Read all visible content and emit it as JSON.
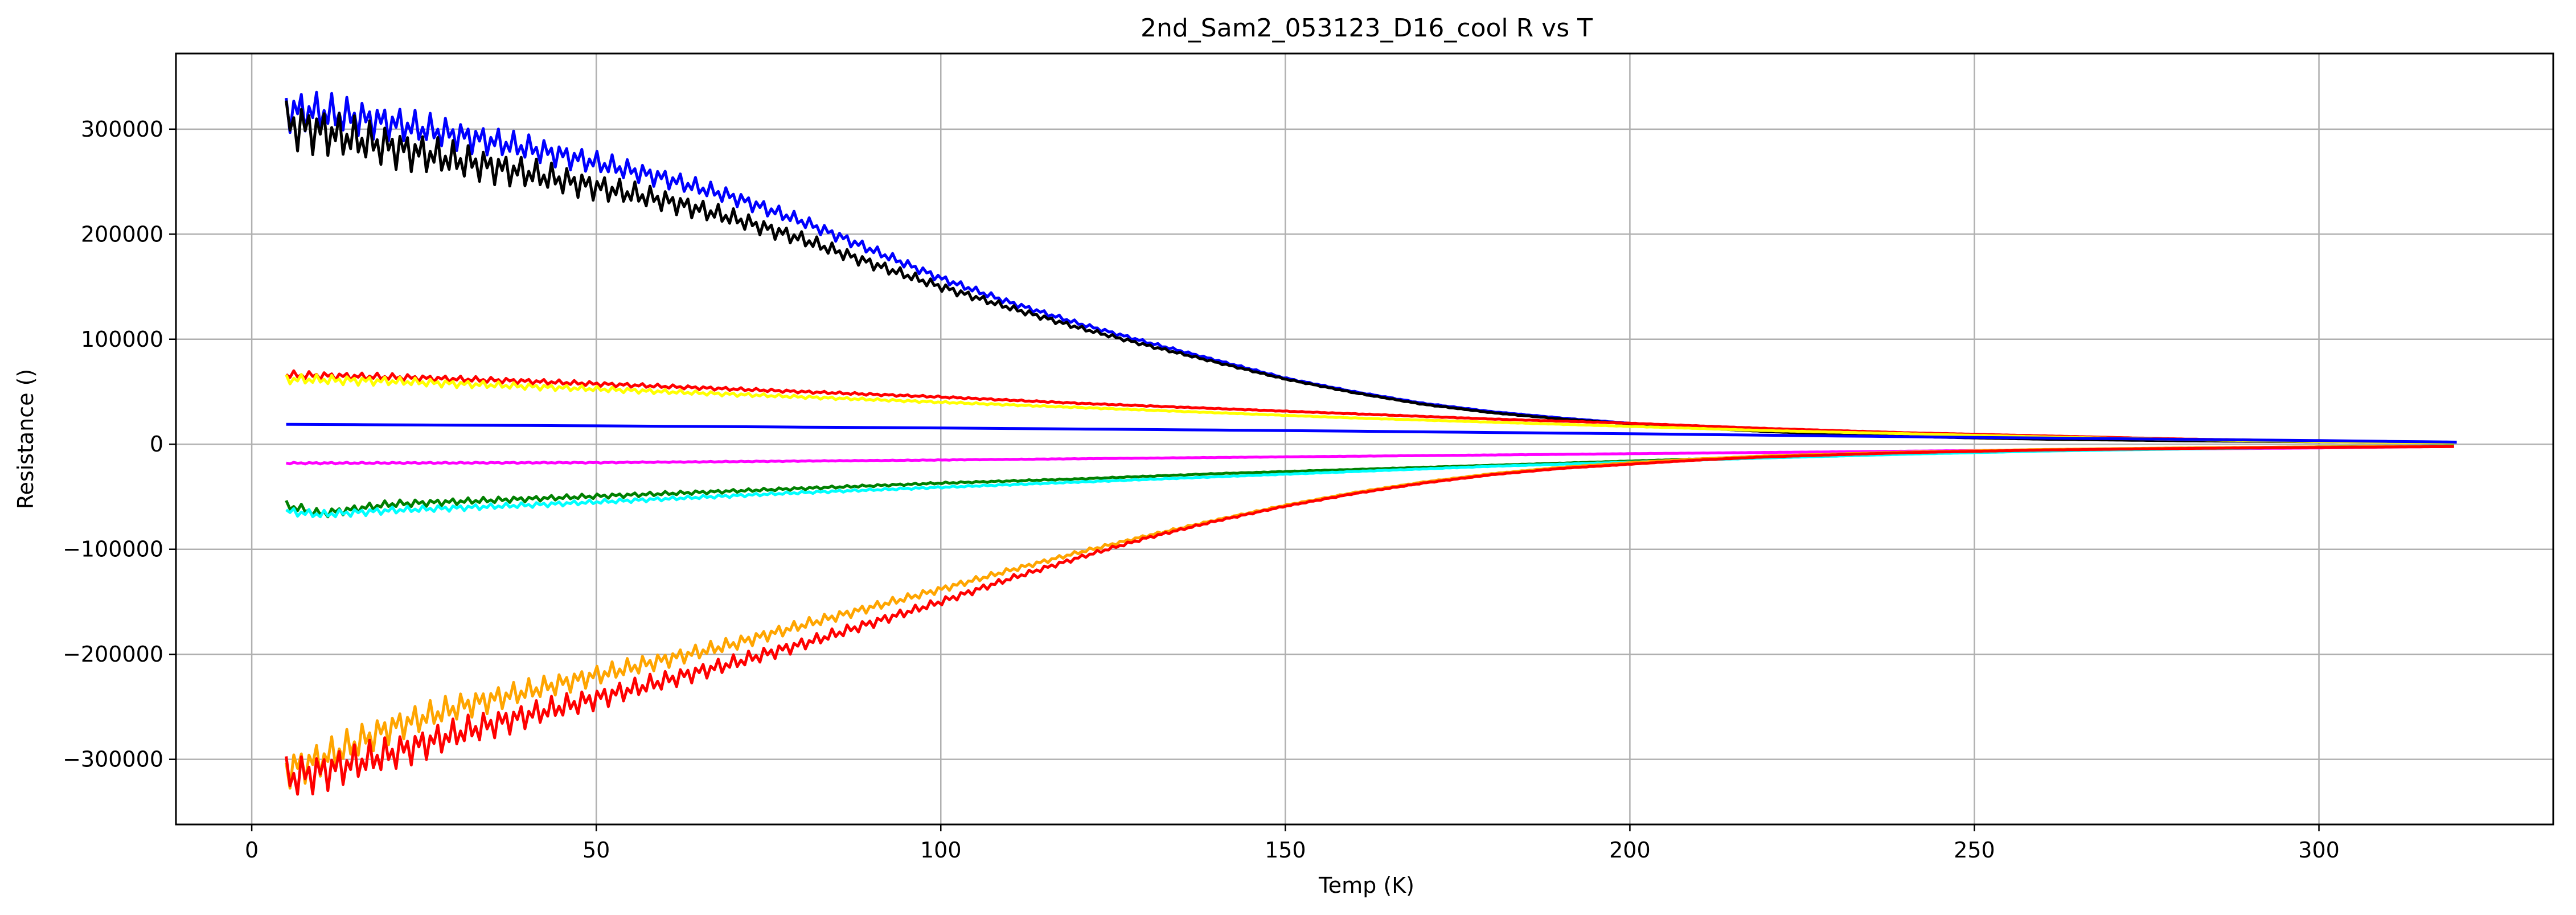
{
  "chart_data": {
    "type": "line",
    "title": "2nd_Sam2_053123_D16_cool R vs T",
    "xlabel": "Temp (K)",
    "ylabel": "Resistance ()",
    "xlim": [
      -11,
      334
    ],
    "ylim": [
      -362000,
      372000
    ],
    "xticks": [
      0,
      50,
      100,
      150,
      200,
      250,
      300
    ],
    "yticks": [
      -300000,
      -200000,
      -100000,
      0,
      100000,
      200000,
      300000
    ],
    "xtick_labels": [
      "0",
      "50",
      "100",
      "150",
      "200",
      "250",
      "300"
    ],
    "ytick_labels": [
      "−300000",
      "−200000",
      "−100000",
      "0",
      "100000",
      "200000",
      "300000"
    ],
    "grid": true,
    "legend": "none",
    "series": [
      {
        "color": "#0000ff",
        "jitter": 18000,
        "x": [
          5,
          10,
          20,
          30,
          40,
          50,
          60,
          70,
          80,
          90,
          100,
          110,
          120,
          130,
          140,
          150,
          160,
          170,
          180,
          190,
          200,
          210,
          220,
          230,
          240,
          250,
          260,
          280,
          300,
          320
        ],
        "y": [
          318000,
          316000,
          306000,
          294000,
          282000,
          268000,
          253000,
          235000,
          212000,
          185000,
          158000,
          135000,
          115000,
          97000,
          80000,
          63000,
          50000,
          39000,
          31000,
          25000,
          20000,
          16000,
          12500,
          10000,
          8000,
          6500,
          5000,
          3500,
          2500,
          2000
        ]
      },
      {
        "color": "#000000",
        "jitter": 22000,
        "x": [
          5,
          10,
          20,
          30,
          40,
          50,
          60,
          70,
          80,
          90,
          100,
          110,
          120,
          130,
          140,
          150,
          160,
          170,
          180,
          190,
          200,
          210,
          220,
          230,
          240,
          250,
          260,
          280,
          300,
          320
        ],
        "y": [
          305000,
          298000,
          283000,
          270000,
          258000,
          245000,
          232000,
          215000,
          195000,
          172000,
          150000,
          130000,
          111000,
          94000,
          78000,
          62000,
          49000,
          38000,
          30000,
          24000,
          19500,
          15500,
          12000,
          9500,
          7500,
          6000,
          4800,
          3300,
          2400,
          1800
        ]
      },
      {
        "color": "#ff0000",
        "jitter": 3500,
        "x": [
          5,
          20,
          40,
          60,
          80,
          100,
          120,
          140,
          160,
          180,
          200,
          220,
          240,
          260,
          280,
          300,
          320
        ],
        "y": [
          66000,
          64000,
          60000,
          55000,
          50000,
          45000,
          39000,
          34000,
          29000,
          24000,
          20000,
          15000,
          11000,
          8000,
          5000,
          3000,
          1500
        ]
      },
      {
        "color": "#ffff00",
        "jitter": 4500,
        "x": [
          5,
          20,
          40,
          60,
          80,
          100,
          120,
          140,
          160,
          180,
          200,
          220,
          240,
          260,
          280,
          300,
          320
        ],
        "y": [
          62000,
          60000,
          55000,
          50000,
          45000,
          40000,
          35000,
          30000,
          25000,
          21000,
          17000,
          13000,
          10000,
          7000,
          4500,
          2500,
          1200
        ]
      },
      {
        "color": "#0000ff",
        "jitter": 0,
        "x": [
          5,
          50,
          100,
          150,
          200,
          250,
          300,
          320
        ],
        "y": [
          19000,
          17500,
          15500,
          13000,
          10000,
          6500,
          3500,
          2000
        ]
      },
      {
        "color": "#ff00ff",
        "jitter": 700,
        "x": [
          5,
          50,
          100,
          150,
          200,
          250,
          300,
          320
        ],
        "y": [
          -18000,
          -17500,
          -15000,
          -12000,
          -9000,
          -6000,
          -3500,
          -2000
        ]
      },
      {
        "color": "#008000",
        "jitter": 4000,
        "x": [
          5,
          10,
          20,
          40,
          60,
          80,
          100,
          120,
          140,
          160,
          180,
          200,
          220,
          240,
          260,
          280,
          300,
          320
        ],
        "y": [
          -58000,
          -66000,
          -57000,
          -52000,
          -47000,
          -42000,
          -37000,
          -33000,
          -28000,
          -24000,
          -20000,
          -16000,
          -12000,
          -9000,
          -6000,
          -4000,
          -2500,
          -1500
        ]
      },
      {
        "color": "#00ffff",
        "jitter": 3500,
        "x": [
          5,
          10,
          20,
          40,
          60,
          80,
          100,
          120,
          140,
          160,
          180,
          200,
          220,
          240,
          260,
          280,
          300,
          320
        ],
        "y": [
          -64000,
          -67000,
          -63000,
          -58000,
          -52000,
          -46000,
          -41000,
          -36000,
          -31000,
          -26000,
          -21000,
          -17000,
          -13000,
          -9500,
          -6500,
          -4500,
          -2800,
          -1800
        ]
      },
      {
        "color": "#ffa500",
        "jitter": 16000,
        "x": [
          5,
          10,
          20,
          30,
          40,
          50,
          60,
          70,
          80,
          90,
          100,
          110,
          120,
          130,
          140,
          150,
          160,
          170,
          180,
          190,
          200,
          210,
          220,
          240,
          260,
          280,
          300,
          320
        ],
        "y": [
          -310000,
          -300000,
          -270000,
          -250000,
          -235000,
          -220000,
          -205000,
          -190000,
          -172000,
          -155000,
          -138000,
          -120000,
          -103000,
          -87000,
          -72000,
          -58000,
          -46000,
          -36000,
          -28000,
          -22000,
          -17500,
          -14000,
          -11000,
          -7500,
          -5000,
          -3500,
          -2500,
          -2000
        ]
      },
      {
        "color": "#ff0000",
        "jitter": 18000,
        "x": [
          5,
          10,
          20,
          30,
          40,
          50,
          60,
          70,
          80,
          90,
          100,
          110,
          120,
          130,
          140,
          150,
          160,
          170,
          180,
          190,
          200,
          210,
          220,
          240,
          260,
          280,
          300,
          320
        ],
        "y": [
          -318000,
          -312000,
          -295000,
          -275000,
          -258000,
          -242000,
          -225000,
          -208000,
          -190000,
          -170000,
          -150000,
          -128000,
          -108000,
          -89000,
          -73000,
          -59000,
          -47000,
          -37000,
          -29000,
          -23000,
          -19000,
          -15000,
          -12000,
          -8000,
          -5500,
          -4000,
          -3000,
          -2200
        ]
      }
    ]
  }
}
